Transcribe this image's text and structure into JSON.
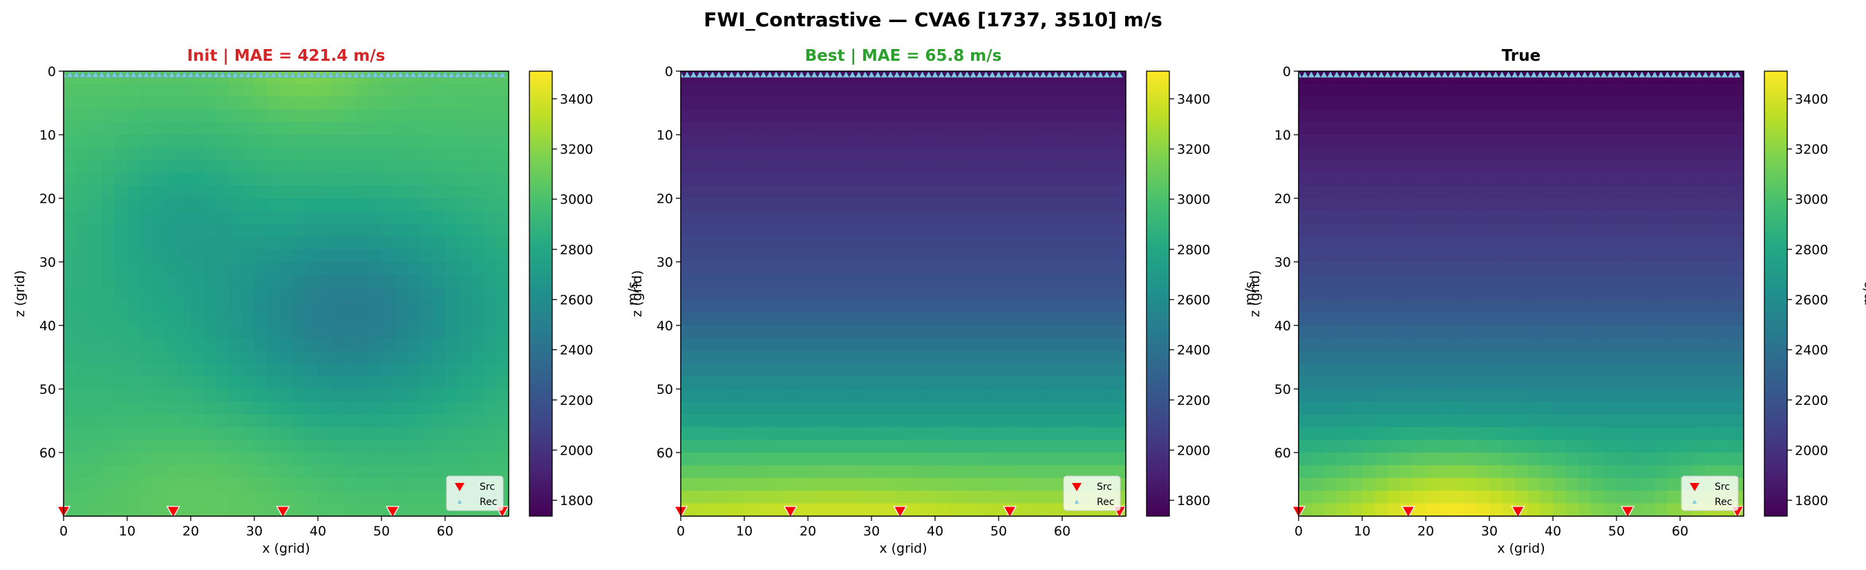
{
  "figure": {
    "suptitle": "FWI_Contrastive — CVA6 [1737, 3510] m/s"
  },
  "colors": {
    "init_title": "#d62728",
    "best_title": "#2ca02c",
    "true_title": "#000000",
    "source_marker": "#ff0000",
    "receiver_marker": "#7ec8e3"
  },
  "colormap": "viridis",
  "chart_data": [
    {
      "type": "heatmap",
      "title": "Init  |  MAE = 421.4 m/s",
      "title_color": "#d62728",
      "xlabel": "x (grid)",
      "ylabel": "z (grid)",
      "xlim": [
        0,
        70
      ],
      "ylim": [
        70,
        0
      ],
      "xticks": [
        0,
        10,
        20,
        30,
        40,
        50,
        60
      ],
      "yticks": [
        0,
        10,
        20,
        30,
        40,
        50,
        60
      ],
      "colorbar": {
        "label": "m/s",
        "range": [
          1737,
          3510
        ],
        "ticks": [
          1800,
          2000,
          2200,
          2400,
          2600,
          2800,
          3000,
          3200,
          3400
        ]
      },
      "legend": {
        "location": "lower right",
        "entries": [
          "Src",
          "Rec"
        ]
      },
      "sources_x": [
        0,
        17.25,
        34.5,
        51.75,
        69
      ],
      "receivers_depth": 0,
      "field": "smooth initial model: about 2950 m/s near top and bottom, low-velocity zone about 2450 m/s centred near x=45, z=38"
    },
    {
      "type": "heatmap",
      "title": "Best  |  MAE = 65.8 m/s",
      "title_color": "#2ca02c",
      "xlabel": "x (grid)",
      "ylabel": "z (grid)",
      "xlim": [
        0,
        70
      ],
      "ylim": [
        70,
        0
      ],
      "xticks": [
        0,
        10,
        20,
        30,
        40,
        50,
        60
      ],
      "yticks": [
        0,
        10,
        20,
        30,
        40,
        50,
        60
      ],
      "colorbar": {
        "label": "m/s",
        "range": [
          1737,
          3510
        ],
        "ticks": [
          1800,
          2000,
          2200,
          2400,
          2600,
          2800,
          3000,
          3200,
          3400
        ]
      },
      "legend": {
        "location": "lower right",
        "entries": [
          "Src",
          "Rec"
        ]
      },
      "sources_x": [
        0,
        17.25,
        34.5,
        51.75,
        69
      ],
      "receivers_depth": 0,
      "field": "velocity increasing with depth: about 1800 m/s at top to about 3350 m/s at bottom"
    },
    {
      "type": "heatmap",
      "title": "True",
      "title_color": "#000000",
      "xlabel": "x (grid)",
      "ylabel": "z (grid)",
      "xlim": [
        0,
        70
      ],
      "ylim": [
        70,
        0
      ],
      "xticks": [
        0,
        10,
        20,
        30,
        40,
        50,
        60
      ],
      "yticks": [
        0,
        10,
        20,
        30,
        40,
        50,
        60
      ],
      "colorbar": {
        "label": "m/s",
        "range": [
          1737,
          3510
        ],
        "ticks": [
          1800,
          2000,
          2200,
          2400,
          2600,
          2800,
          3000,
          3200,
          3400
        ]
      },
      "legend": {
        "location": "lower right",
        "entries": [
          "Src",
          "Rec"
        ]
      },
      "sources_x": [
        0,
        17.25,
        34.5,
        51.75,
        69
      ],
      "receivers_depth": 0,
      "field": "velocity increasing with depth: about 1740 m/s at top to about 3500 m/s in bright bottom zone"
    }
  ]
}
